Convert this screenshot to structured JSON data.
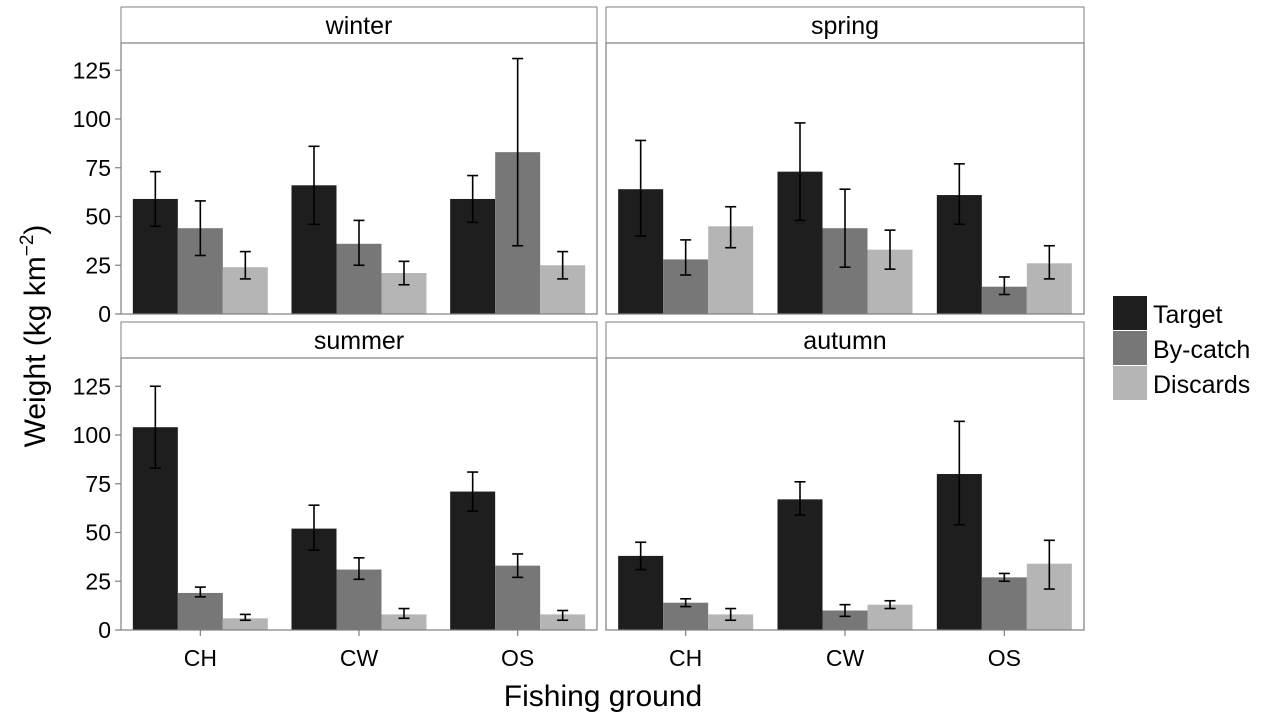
{
  "chart_data": {
    "type": "bar",
    "facets": [
      "winter",
      "spring",
      "summer",
      "autumn"
    ],
    "categories": [
      "CH",
      "CW",
      "OS"
    ],
    "xlabel": "Fishing ground",
    "ylabel": "Weight (kg km",
    "ylabel_superscript": "−2",
    "ylabel_close": ")",
    "ylim": [
      0,
      138
    ],
    "yticks": [
      0,
      25,
      50,
      75,
      100,
      125
    ],
    "series": [
      {
        "name": "Target",
        "color": "#1e1e1e",
        "values": {
          "winter": [
            59,
            66,
            59
          ],
          "spring": [
            64,
            73,
            61
          ],
          "summer": [
            104,
            52,
            71
          ],
          "autumn": [
            38,
            67,
            80
          ]
        },
        "errors": {
          "winter": [
            [
              45,
              73
            ],
            [
              46,
              86
            ],
            [
              47,
              71
            ]
          ],
          "spring": [
            [
              40,
              89
            ],
            [
              48,
              98
            ],
            [
              46,
              77
            ]
          ],
          "summer": [
            [
              83,
              125
            ],
            [
              41,
              64
            ],
            [
              61,
              81
            ]
          ],
          "autumn": [
            [
              31,
              45
            ],
            [
              59,
              76
            ],
            [
              54,
              107
            ]
          ]
        }
      },
      {
        "name": "By-catch",
        "color": "#777777",
        "values": {
          "winter": [
            44,
            36,
            83
          ],
          "spring": [
            28,
            44,
            14
          ],
          "summer": [
            19,
            31,
            33
          ],
          "autumn": [
            14,
            10,
            27
          ]
        },
        "errors": {
          "winter": [
            [
              30,
              58
            ],
            [
              25,
              48
            ],
            [
              35,
              131
            ]
          ],
          "spring": [
            [
              20,
              38
            ],
            [
              24,
              64
            ],
            [
              10,
              19
            ]
          ],
          "summer": [
            [
              17,
              22
            ],
            [
              26,
              37
            ],
            [
              27,
              39
            ]
          ],
          "autumn": [
            [
              12,
              16
            ],
            [
              7,
              13
            ],
            [
              25,
              29
            ]
          ]
        }
      },
      {
        "name": "Discards",
        "color": "#b5b5b5",
        "values": {
          "winter": [
            24,
            21,
            25
          ],
          "spring": [
            45,
            33,
            26
          ],
          "summer": [
            6,
            8,
            8
          ],
          "autumn": [
            8,
            13,
            34
          ]
        },
        "errors": {
          "winter": [
            [
              18,
              32
            ],
            [
              15,
              27
            ],
            [
              18,
              32
            ]
          ],
          "spring": [
            [
              34,
              55
            ],
            [
              23,
              43
            ],
            [
              18,
              35
            ]
          ],
          "summer": [
            [
              5,
              8
            ],
            [
              6,
              11
            ],
            [
              5,
              10
            ]
          ],
          "autumn": [
            [
              5,
              11
            ],
            [
              11,
              15
            ],
            [
              21,
              46
            ]
          ]
        }
      }
    ],
    "legend_position": "right",
    "grid": false
  }
}
